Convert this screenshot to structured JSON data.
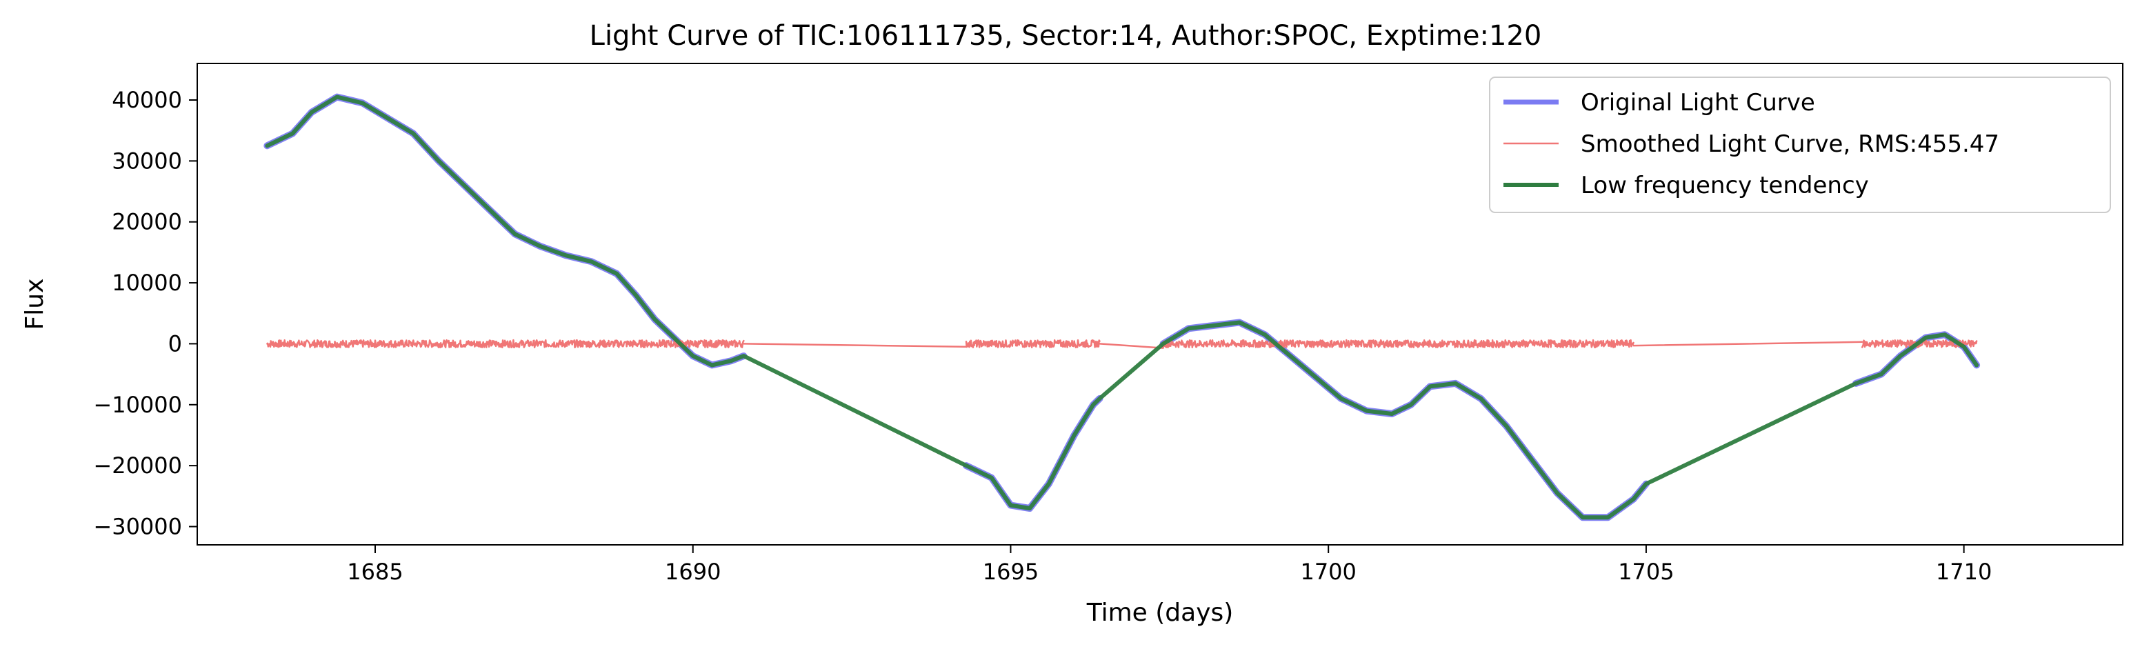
{
  "chart_data": {
    "type": "line",
    "title": "Light Curve of TIC:106111735, Sector:14, Author:SPOC, Exptime:120",
    "xlabel": "Time (days)",
    "ylabel": "Flux",
    "xlim": [
      1682.2,
      1712.5
    ],
    "ylim": [
      -33000,
      46000
    ],
    "xticks": [
      1685,
      1690,
      1695,
      1700,
      1705,
      1710
    ],
    "yticks": [
      -30000,
      -20000,
      -10000,
      0,
      10000,
      20000,
      30000,
      40000
    ],
    "grid": false,
    "legend_position": "top-right",
    "series": [
      {
        "name": "Original Light Curve",
        "color": "#7b7bf2",
        "segments": [
          [
            [
              1683.3,
              32500
            ],
            [
              1683.7,
              34500
            ],
            [
              1684.0,
              38000
            ],
            [
              1684.4,
              40500
            ],
            [
              1684.8,
              39500
            ],
            [
              1685.2,
              37000
            ],
            [
              1685.6,
              34500
            ],
            [
              1686.0,
              30000
            ],
            [
              1686.4,
              26000
            ],
            [
              1686.8,
              22000
            ],
            [
              1687.2,
              18000
            ],
            [
              1687.6,
              16000
            ],
            [
              1688.0,
              14500
            ],
            [
              1688.4,
              13500
            ],
            [
              1688.8,
              11500
            ],
            [
              1689.1,
              8000
            ],
            [
              1689.4,
              4000
            ],
            [
              1689.7,
              1000
            ],
            [
              1690.0,
              -2000
            ],
            [
              1690.3,
              -3500
            ],
            [
              1690.6,
              -2800
            ],
            [
              1690.8,
              -2000
            ]
          ],
          [
            [
              1694.3,
              -20000
            ],
            [
              1694.7,
              -22000
            ],
            [
              1695.0,
              -26500
            ],
            [
              1695.3,
              -27000
            ],
            [
              1695.6,
              -23000
            ],
            [
              1696.0,
              -15000
            ],
            [
              1696.3,
              -10000
            ],
            [
              1696.4,
              -9000
            ]
          ],
          [
            [
              1697.4,
              0
            ],
            [
              1697.8,
              2500
            ],
            [
              1698.2,
              3000
            ],
            [
              1698.6,
              3500
            ],
            [
              1699.0,
              1500
            ],
            [
              1699.4,
              -2000
            ],
            [
              1699.8,
              -5500
            ],
            [
              1700.2,
              -9000
            ],
            [
              1700.6,
              -11000
            ],
            [
              1701.0,
              -11500
            ],
            [
              1701.3,
              -10000
            ],
            [
              1701.6,
              -7000
            ],
            [
              1702.0,
              -6500
            ],
            [
              1702.4,
              -9000
            ],
            [
              1702.8,
              -13500
            ],
            [
              1703.2,
              -19000
            ],
            [
              1703.6,
              -24500
            ],
            [
              1704.0,
              -28500
            ],
            [
              1704.4,
              -28500
            ],
            [
              1704.8,
              -25500
            ],
            [
              1705.0,
              -23000
            ]
          ],
          [
            [
              1708.3,
              -6500
            ],
            [
              1708.7,
              -5000
            ],
            [
              1709.0,
              -2000
            ],
            [
              1709.4,
              1000
            ],
            [
              1709.7,
              1500
            ],
            [
              1710.0,
              -500
            ],
            [
              1710.2,
              -3500
            ]
          ]
        ]
      },
      {
        "name": "Smoothed Light Curve, RMS:455.47",
        "color": "#f07676",
        "segments": [
          [
            [
              1683.3,
              0
            ],
            [
              1690.8,
              0
            ]
          ],
          [
            [
              1690.8,
              0
            ],
            [
              1694.3,
              -500
            ]
          ],
          [
            [
              1694.3,
              0
            ],
            [
              1696.4,
              0
            ]
          ],
          [
            [
              1696.4,
              0
            ],
            [
              1697.4,
              -700
            ]
          ],
          [
            [
              1697.4,
              0
            ],
            [
              1704.8,
              0
            ]
          ],
          [
            [
              1704.8,
              -300
            ],
            [
              1708.4,
              300
            ]
          ],
          [
            [
              1708.4,
              0
            ],
            [
              1710.2,
              0
            ]
          ]
        ]
      },
      {
        "name": "Low frequency tendency",
        "color": "#2e7d40",
        "segments": [
          [
            [
              1683.3,
              32500
            ],
            [
              1683.7,
              34500
            ],
            [
              1684.0,
              38000
            ],
            [
              1684.4,
              40500
            ],
            [
              1684.8,
              39500
            ],
            [
              1685.2,
              37000
            ],
            [
              1685.6,
              34500
            ],
            [
              1686.0,
              30000
            ],
            [
              1686.4,
              26000
            ],
            [
              1686.8,
              22000
            ],
            [
              1687.2,
              18000
            ],
            [
              1687.6,
              16000
            ],
            [
              1688.0,
              14500
            ],
            [
              1688.4,
              13500
            ],
            [
              1688.8,
              11500
            ],
            [
              1689.1,
              8000
            ],
            [
              1689.4,
              4000
            ],
            [
              1689.7,
              1000
            ],
            [
              1690.0,
              -2000
            ],
            [
              1690.3,
              -3500
            ],
            [
              1690.6,
              -2800
            ],
            [
              1690.8,
              -2000
            ],
            [
              1694.3,
              -20000
            ],
            [
              1694.7,
              -22000
            ],
            [
              1695.0,
              -26500
            ],
            [
              1695.3,
              -27000
            ],
            [
              1695.6,
              -23000
            ],
            [
              1696.0,
              -15000
            ],
            [
              1696.3,
              -10000
            ],
            [
              1696.4,
              -9000
            ],
            [
              1697.4,
              0
            ],
            [
              1697.8,
              2500
            ],
            [
              1698.2,
              3000
            ],
            [
              1698.6,
              3500
            ],
            [
              1699.0,
              1500
            ],
            [
              1699.4,
              -2000
            ],
            [
              1699.8,
              -5500
            ],
            [
              1700.2,
              -9000
            ],
            [
              1700.6,
              -11000
            ],
            [
              1701.0,
              -11500
            ],
            [
              1701.3,
              -10000
            ],
            [
              1701.6,
              -7000
            ],
            [
              1702.0,
              -6500
            ],
            [
              1702.4,
              -9000
            ],
            [
              1702.8,
              -13500
            ],
            [
              1703.2,
              -19000
            ],
            [
              1703.6,
              -24500
            ],
            [
              1704.0,
              -28500
            ],
            [
              1704.4,
              -28500
            ],
            [
              1704.8,
              -25500
            ],
            [
              1705.0,
              -23000
            ],
            [
              1708.3,
              -6500
            ],
            [
              1708.7,
              -5000
            ],
            [
              1709.0,
              -2000
            ],
            [
              1709.4,
              1000
            ],
            [
              1709.7,
              1500
            ],
            [
              1710.0,
              -500
            ],
            [
              1710.2,
              -3500
            ]
          ]
        ]
      }
    ]
  }
}
